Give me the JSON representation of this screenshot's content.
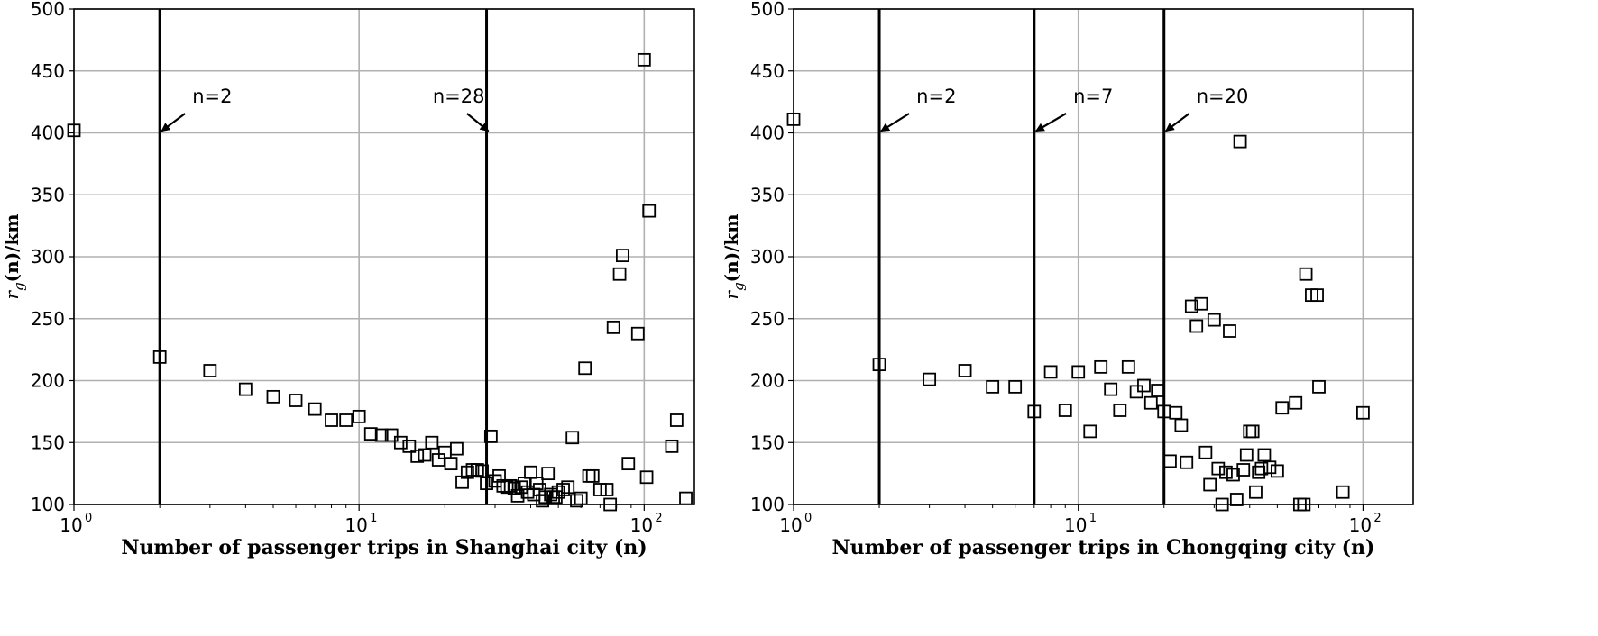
{
  "chart_data": [
    {
      "type": "scatter",
      "xscale": "log",
      "xlim": [
        1,
        150
      ],
      "ylim": [
        100,
        500
      ],
      "grid": true,
      "xlabel": "Number of passenger trips in Shanghai city (n)",
      "ylabel_var": "r",
      "ylabel_sub": "g",
      "ylabel_rest": "(n)/km",
      "yticks": [
        "100",
        "150",
        "200",
        "250",
        "300",
        "350",
        "400",
        "450",
        "500"
      ],
      "xticks": [
        {
          "base": "10",
          "exp": "0",
          "value": 1
        },
        {
          "base": "10",
          "exp": "1",
          "value": 10
        },
        {
          "base": "10",
          "exp": "2",
          "value": 100
        }
      ],
      "vlines": [
        {
          "x": 2,
          "label": "n=2",
          "label_x": 2.6,
          "label_y": 420
        },
        {
          "x": 28,
          "label": "n=28",
          "label_x": 19.5,
          "label_y": 420
        }
      ],
      "points": [
        [
          1,
          402
        ],
        [
          2,
          219
        ],
        [
          3,
          208
        ],
        [
          4,
          193
        ],
        [
          5,
          187
        ],
        [
          6,
          184
        ],
        [
          7,
          177
        ],
        [
          8,
          168
        ],
        [
          9,
          168
        ],
        [
          10,
          171
        ],
        [
          11,
          157
        ],
        [
          12,
          156
        ],
        [
          13,
          156
        ],
        [
          14,
          150
        ],
        [
          15,
          147
        ],
        [
          16,
          139
        ],
        [
          17,
          140
        ],
        [
          18,
          150
        ],
        [
          19,
          136
        ],
        [
          20,
          142
        ],
        [
          21,
          133
        ],
        [
          22,
          145
        ],
        [
          23,
          118
        ],
        [
          24,
          126
        ],
        [
          25,
          128
        ],
        [
          26,
          128
        ],
        [
          27,
          127
        ],
        [
          28,
          117
        ],
        [
          29,
          155
        ],
        [
          30,
          119
        ],
        [
          31,
          123
        ],
        [
          32,
          115
        ],
        [
          33,
          114
        ],
        [
          34,
          115
        ],
        [
          35,
          113
        ],
        [
          36,
          107
        ],
        [
          37,
          114
        ],
        [
          38,
          117
        ],
        [
          39,
          110
        ],
        [
          40,
          126
        ],
        [
          41,
          108
        ],
        [
          42,
          117
        ],
        [
          43,
          112
        ],
        [
          44,
          103
        ],
        [
          45,
          106
        ],
        [
          46,
          125
        ],
        [
          47,
          108
        ],
        [
          48,
          106
        ],
        [
          49,
          106
        ],
        [
          50,
          110
        ],
        [
          52,
          112
        ],
        [
          54,
          114
        ],
        [
          56,
          154
        ],
        [
          58,
          103
        ],
        [
          60,
          105
        ],
        [
          62,
          210
        ],
        [
          64,
          123
        ],
        [
          66,
          123
        ],
        [
          70,
          112
        ],
        [
          74,
          112
        ],
        [
          76,
          100
        ],
        [
          78,
          243
        ],
        [
          82,
          286
        ],
        [
          84,
          301
        ],
        [
          88,
          133
        ],
        [
          95,
          238
        ],
        [
          100,
          459
        ],
        [
          102,
          122
        ],
        [
          104,
          337
        ],
        [
          125,
          147
        ],
        [
          130,
          168
        ],
        [
          140,
          105
        ]
      ]
    },
    {
      "type": "scatter",
      "xscale": "log",
      "xlim": [
        1,
        150
      ],
      "ylim": [
        100,
        500
      ],
      "grid": true,
      "xlabel": "Number of passenger trips in Chongqing city (n)",
      "ylabel_var": "r",
      "ylabel_sub": "g",
      "ylabel_rest": "(n)/km",
      "yticks": [
        "100",
        "150",
        "200",
        "250",
        "300",
        "350",
        "400",
        "450",
        "500"
      ],
      "xticks": [
        {
          "base": "10",
          "exp": "0",
          "value": 1
        },
        {
          "base": "10",
          "exp": "1",
          "value": 10
        },
        {
          "base": "10",
          "exp": "2",
          "value": 100
        }
      ],
      "vlines": [
        {
          "x": 2,
          "label": "n=2",
          "label_x": 2.7,
          "label_y": 420
        },
        {
          "x": 7,
          "label": "n=7",
          "label_x": 9.6,
          "label_y": 420
        },
        {
          "x": 20,
          "label": "n=20",
          "label_x": 26,
          "label_y": 420
        }
      ],
      "points": [
        [
          1,
          411
        ],
        [
          2,
          213
        ],
        [
          3,
          201
        ],
        [
          4,
          208
        ],
        [
          5,
          195
        ],
        [
          6,
          195
        ],
        [
          7,
          175
        ],
        [
          8,
          207
        ],
        [
          9,
          176
        ],
        [
          10,
          207
        ],
        [
          11,
          159
        ],
        [
          12,
          211
        ],
        [
          13,
          193
        ],
        [
          14,
          176
        ],
        [
          15,
          211
        ],
        [
          16,
          191
        ],
        [
          17,
          196
        ],
        [
          18,
          182
        ],
        [
          19,
          192
        ],
        [
          20,
          175
        ],
        [
          21,
          135
        ],
        [
          22,
          174
        ],
        [
          23,
          164
        ],
        [
          24,
          134
        ],
        [
          25,
          260
        ],
        [
          26,
          244
        ],
        [
          27,
          262
        ],
        [
          28,
          142
        ],
        [
          29,
          116
        ],
        [
          30,
          249
        ],
        [
          31,
          129
        ],
        [
          32,
          100
        ],
        [
          33,
          126
        ],
        [
          34,
          240
        ],
        [
          35,
          124
        ],
        [
          36,
          104
        ],
        [
          37,
          393
        ],
        [
          38,
          128
        ],
        [
          39,
          140
        ],
        [
          40,
          159
        ],
        [
          41,
          159
        ],
        [
          42,
          110
        ],
        [
          43,
          126
        ],
        [
          44,
          129
        ],
        [
          45,
          140
        ],
        [
          47,
          130
        ],
        [
          50,
          127
        ],
        [
          52,
          178
        ],
        [
          58,
          182
        ],
        [
          60,
          100
        ],
        [
          62,
          100
        ],
        [
          63,
          286
        ],
        [
          66,
          269
        ],
        [
          69,
          269
        ],
        [
          70,
          195
        ],
        [
          85,
          110
        ],
        [
          100,
          174
        ]
      ]
    }
  ]
}
